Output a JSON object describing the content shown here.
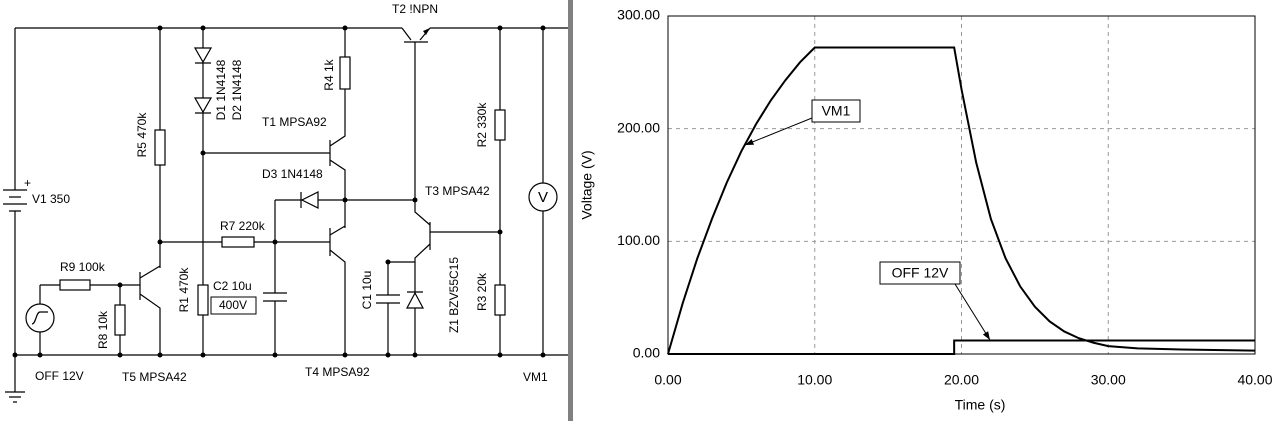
{
  "schematic": {
    "labels": {
      "t2": "T2 !NPN",
      "r4": "R4 1k",
      "d1": "D1 1N4148",
      "d2": "D2 1N4148",
      "t1": "T1 MPSA92",
      "r5": "R5 470k",
      "r2": "R2 330k",
      "d3": "D3 1N4148",
      "t3": "T3 MPSA42",
      "v1_plus": "+",
      "v1": "V1 350",
      "r7": "R7 220k",
      "r9": "R9 100k",
      "c2": "C2 10u",
      "c2_rating": "400V",
      "r1": "R1 470k",
      "r8": "R8 10k",
      "c1": "C1 10u",
      "z1": "Z1 BZV55C15",
      "r3": "R3 20k",
      "off": "OFF 12V",
      "t5": "T5 MPSA42",
      "t4": "T4 MPSA92",
      "vm1": "VM1",
      "meter": "V"
    }
  },
  "chart_data": {
    "type": "line",
    "xlabel": "Time (s)",
    "ylabel": "Voltage (V)",
    "xlim": [
      0,
      40
    ],
    "ylim": [
      0,
      300
    ],
    "xticks": [
      {
        "value": 0,
        "label": "0.00"
      },
      {
        "value": 10,
        "label": "10.00"
      },
      {
        "value": 20,
        "label": "20.00"
      },
      {
        "value": 30,
        "label": "30.00"
      },
      {
        "value": 40,
        "label": "40.00"
      }
    ],
    "yticks": [
      {
        "value": 0,
        "label": "0.00"
      },
      {
        "value": 100,
        "label": "100.00"
      },
      {
        "value": 200,
        "label": "200.00"
      },
      {
        "value": 300,
        "label": "300.00"
      }
    ],
    "grid": true,
    "series": [
      {
        "name": "VM1",
        "color": "#000000",
        "x": [
          0,
          1,
          2,
          3,
          4,
          5,
          6,
          7,
          8,
          9,
          10,
          19.5,
          20,
          21,
          22,
          23,
          24,
          25,
          26,
          27,
          28,
          29,
          30,
          32,
          35,
          40
        ],
        "values": [
          0,
          45,
          85,
          120,
          152,
          180,
          204,
          225,
          243,
          259,
          272,
          272,
          235,
          170,
          120,
          85,
          60,
          42,
          29,
          20,
          14,
          10,
          7,
          5,
          4,
          3
        ]
      },
      {
        "name": "OFF 12V",
        "color": "#000000",
        "x": [
          0,
          19.5,
          19.5,
          40
        ],
        "values": [
          0,
          0,
          12,
          12
        ]
      }
    ]
  }
}
